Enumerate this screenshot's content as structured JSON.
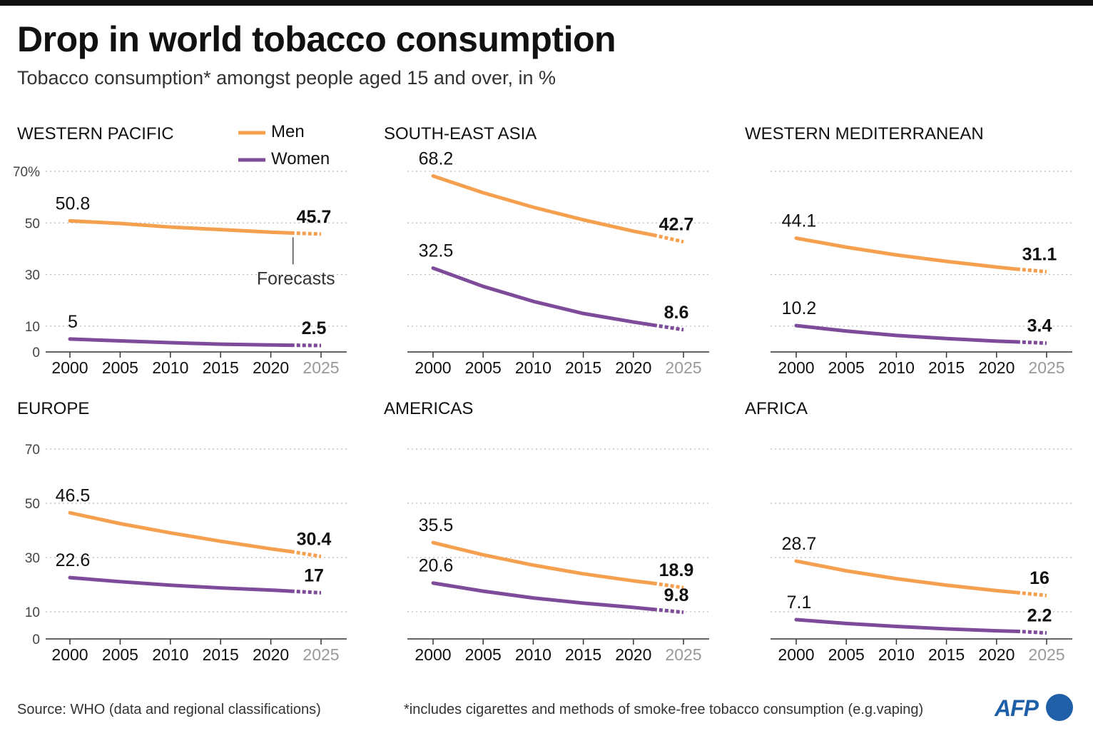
{
  "title": "Drop in world tobacco consumption",
  "subtitle": "Tobacco consumption* amongst people aged 15 and over, in %",
  "legend": {
    "men": "Men",
    "women": "Women"
  },
  "forecast_label": "Forecasts",
  "source": "Source: WHO (data and regional classifications)",
  "footnote": "*includes cigarettes and methods of smoke-free tobacco consumption (e.g.vaping)",
  "logo_text": "AFP",
  "colors": {
    "men": "#f5a04f",
    "women": "#7e4a9a",
    "grid": "#bbbbbb",
    "axis": "#333333",
    "forecast_tick": "#999999"
  },
  "chart_data": [
    {
      "type": "line",
      "title": "WESTERN PACIFIC",
      "x": [
        2000,
        2005,
        2010,
        2015,
        2020,
        2022,
        2025
      ],
      "xticks": [
        2000,
        2005,
        2010,
        2015,
        2020,
        2025
      ],
      "yticks": [
        0,
        10,
        30,
        50,
        70
      ],
      "ytick_labels": [
        "0",
        "10",
        "30",
        "50",
        "70%"
      ],
      "ylim": [
        0,
        70
      ],
      "forecast_from": 2022,
      "show_legend": true,
      "show_forecast_label": true,
      "series": [
        {
          "name": "Men",
          "values": [
            50.8,
            49.8,
            48.4,
            47.4,
            46.4,
            46.1,
            45.7
          ],
          "start_label": "50.8",
          "end_label": "45.7"
        },
        {
          "name": "Women",
          "values": [
            5,
            4.3,
            3.6,
            3.0,
            2.7,
            2.6,
            2.5
          ],
          "start_label": "5",
          "end_label": "2.5"
        }
      ]
    },
    {
      "type": "line",
      "title": "SOUTH-EAST ASIA",
      "x": [
        2000,
        2005,
        2010,
        2015,
        2020,
        2022,
        2025
      ],
      "xticks": [
        2000,
        2005,
        2010,
        2015,
        2020,
        2025
      ],
      "yticks": [
        0,
        10,
        30,
        50,
        70
      ],
      "ytick_labels": [
        "",
        "",
        "",
        "",
        ""
      ],
      "ylim": [
        0,
        70
      ],
      "forecast_from": 2022,
      "series": [
        {
          "name": "Men",
          "values": [
            68.2,
            61.7,
            56.1,
            51.2,
            46.8,
            45.3,
            42.7
          ],
          "start_label": "68.2",
          "end_label": "42.7"
        },
        {
          "name": "Women",
          "values": [
            32.5,
            25.4,
            19.6,
            14.9,
            11.6,
            10.4,
            8.6
          ],
          "start_label": "32.5",
          "end_label": "8.6"
        }
      ]
    },
    {
      "type": "line",
      "title": "WESTERN MEDITERRANEAN",
      "x": [
        2000,
        2005,
        2010,
        2015,
        2020,
        2022,
        2025
      ],
      "xticks": [
        2000,
        2005,
        2010,
        2015,
        2020,
        2025
      ],
      "yticks": [
        0,
        10,
        30,
        50,
        70
      ],
      "ytick_labels": [
        "",
        "",
        "",
        "",
        ""
      ],
      "ylim": [
        0,
        70
      ],
      "forecast_from": 2022,
      "series": [
        {
          "name": "Men",
          "values": [
            44.1,
            40.6,
            37.6,
            35.1,
            32.9,
            32.1,
            31.1
          ],
          "start_label": "44.1",
          "end_label": "31.1"
        },
        {
          "name": "Women",
          "values": [
            10.2,
            8.1,
            6.4,
            5.2,
            4.2,
            3.9,
            3.4
          ],
          "start_label": "10.2",
          "end_label": "3.4"
        }
      ]
    },
    {
      "type": "line",
      "title": "EUROPE",
      "x": [
        2000,
        2005,
        2010,
        2015,
        2020,
        2022,
        2025
      ],
      "xticks": [
        2000,
        2005,
        2010,
        2015,
        2020,
        2025
      ],
      "yticks": [
        0,
        10,
        30,
        50,
        70
      ],
      "ytick_labels": [
        "0",
        "10",
        "30",
        "50",
        "70"
      ],
      "ylim": [
        0,
        70
      ],
      "forecast_from": 2022,
      "series": [
        {
          "name": "Men",
          "values": [
            46.5,
            42.5,
            39.1,
            36.0,
            33.2,
            32.2,
            30.4
          ],
          "start_label": "46.5",
          "end_label": "30.4"
        },
        {
          "name": "Women",
          "values": [
            22.6,
            21.1,
            19.8,
            18.8,
            18.0,
            17.6,
            17
          ],
          "start_label": "22.6",
          "end_label": "17"
        }
      ]
    },
    {
      "type": "line",
      "title": "AMERICAS",
      "x": [
        2000,
        2005,
        2010,
        2015,
        2020,
        2022,
        2025
      ],
      "xticks": [
        2000,
        2005,
        2010,
        2015,
        2020,
        2025
      ],
      "yticks": [
        0,
        10,
        30,
        50,
        70
      ],
      "ytick_labels": [
        "",
        "",
        "",
        "",
        ""
      ],
      "ylim": [
        0,
        70
      ],
      "forecast_from": 2022,
      "series": [
        {
          "name": "Men",
          "values": [
            35.5,
            31.0,
            27.2,
            24.0,
            21.4,
            20.5,
            18.9
          ],
          "start_label": "35.5",
          "end_label": "18.9"
        },
        {
          "name": "Women",
          "values": [
            20.6,
            17.6,
            15.1,
            13.2,
            11.6,
            10.9,
            9.8
          ],
          "start_label": "20.6",
          "end_label": "9.8"
        }
      ]
    },
    {
      "type": "line",
      "title": "AFRICA",
      "x": [
        2000,
        2005,
        2010,
        2015,
        2020,
        2022,
        2025
      ],
      "xticks": [
        2000,
        2005,
        2010,
        2015,
        2020,
        2025
      ],
      "yticks": [
        0,
        10,
        30,
        50,
        70
      ],
      "ytick_labels": [
        "",
        "",
        "",
        "",
        ""
      ],
      "ylim": [
        0,
        70
      ],
      "forecast_from": 2022,
      "series": [
        {
          "name": "Men",
          "values": [
            28.7,
            25.1,
            22.2,
            19.8,
            17.8,
            17.1,
            16
          ],
          "start_label": "28.7",
          "end_label": "16"
        },
        {
          "name": "Women",
          "values": [
            7.1,
            5.7,
            4.6,
            3.7,
            3.0,
            2.8,
            2.2
          ],
          "start_label": "7.1",
          "end_label": "2.2"
        }
      ]
    }
  ]
}
